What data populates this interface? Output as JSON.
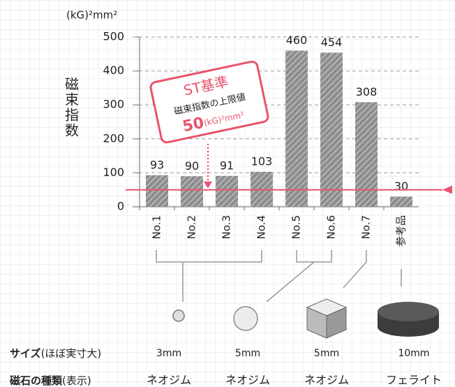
{
  "chart_data": {
    "type": "bar",
    "y_label": "(kG)²mm²",
    "y_title": "磁束指数",
    "categories": [
      "No.1",
      "No.2",
      "No.3",
      "No.4",
      "No.5",
      "No.6",
      "No.7",
      "参考品"
    ],
    "values": [
      93,
      90,
      91,
      103,
      460,
      454,
      308,
      30
    ],
    "color": "#8c8c8c",
    "ylim": [
      0,
      500
    ],
    "yticks": [
      0,
      100,
      200,
      300,
      400,
      500
    ],
    "grid": true,
    "reference_line": {
      "value": 50,
      "label": "ST基準",
      "description": "磁束指数の上限値",
      "unit": "(kG)²mm²",
      "color": "#e8546b"
    }
  },
  "size_row": {
    "label": "サイズ",
    "note": "(ほぼ実寸大)",
    "values": [
      "3mm",
      "5mm",
      "5mm",
      "10mm"
    ]
  },
  "type_row": {
    "label": "磁石の種類",
    "note": "(表示)",
    "values": [
      "ネオジム",
      "ネオジム",
      "ネオジム",
      "フェライト"
    ]
  }
}
